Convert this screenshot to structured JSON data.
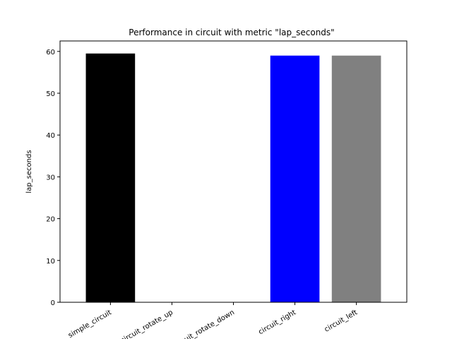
{
  "chart_data": {
    "type": "bar",
    "title": "Performance in circuit with metric \"lap_seconds\"",
    "xlabel": "",
    "ylabel": "lap_seconds",
    "categories": [
      "simple_circuit",
      "circuit_rotate_up",
      "circuit_rotate_down",
      "circuit_right",
      "circuit_left"
    ],
    "values": [
      59.5,
      0,
      0,
      59.0,
      59.0
    ],
    "colors": [
      "#000000",
      "#ffffff",
      "#ffffff",
      "#0000ff",
      "#808080"
    ],
    "ylim": [
      0,
      62.5
    ],
    "yticks": [
      0,
      10,
      20,
      30,
      40,
      50,
      60
    ],
    "grid": false,
    "legend": false
  }
}
